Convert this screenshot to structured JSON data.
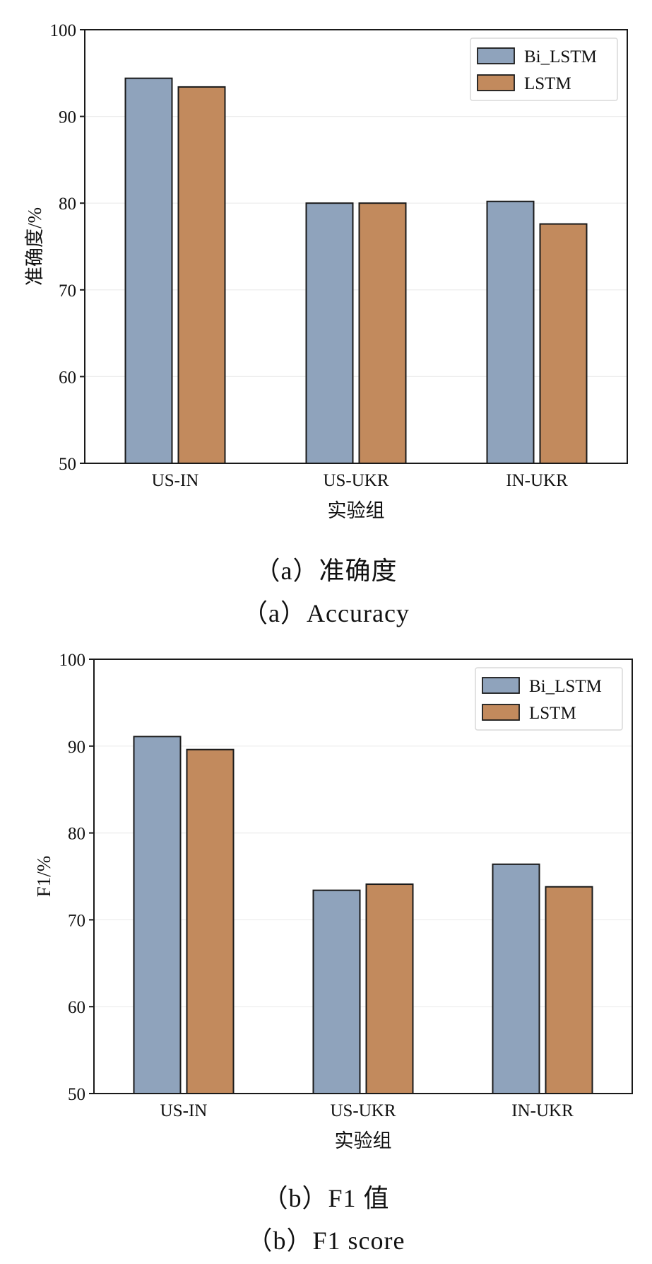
{
  "chart_data": [
    {
      "type": "bar",
      "categories": [
        "US-IN",
        "US-UKR",
        "IN-UKR"
      ],
      "series": [
        {
          "name": "Bi_LSTM",
          "values": [
            94.4,
            80.0,
            80.2
          ]
        },
        {
          "name": "LSTM",
          "values": [
            93.4,
            80.0,
            77.6
          ]
        }
      ],
      "xlabel": "实验组",
      "ylabel": "准确度/%",
      "ylim": [
        50,
        100
      ],
      "yticks": [
        50,
        60,
        70,
        80,
        90,
        100
      ],
      "grid": true,
      "legend_position": "top-right",
      "colors": {
        "Bi_LSTM": "#8fa3bc",
        "LSTM": "#c28a5d"
      },
      "caption_cn": "（a）准确度",
      "caption_en": "（a）Accuracy"
    },
    {
      "type": "bar",
      "categories": [
        "US-IN",
        "US-UKR",
        "IN-UKR"
      ],
      "series": [
        {
          "name": "Bi_LSTM",
          "values": [
            91.1,
            73.4,
            76.4
          ]
        },
        {
          "name": "LSTM",
          "values": [
            89.6,
            74.1,
            73.8
          ]
        }
      ],
      "xlabel": "实验组",
      "ylabel": "F1/%",
      "ylim": [
        50,
        100
      ],
      "yticks": [
        50,
        60,
        70,
        80,
        90,
        100
      ],
      "grid": true,
      "legend_position": "top-right",
      "colors": {
        "Bi_LSTM": "#8fa3bc",
        "LSTM": "#c28a5d"
      },
      "caption_cn": "（b）F1 值",
      "caption_en": "（b）F1 score"
    }
  ]
}
